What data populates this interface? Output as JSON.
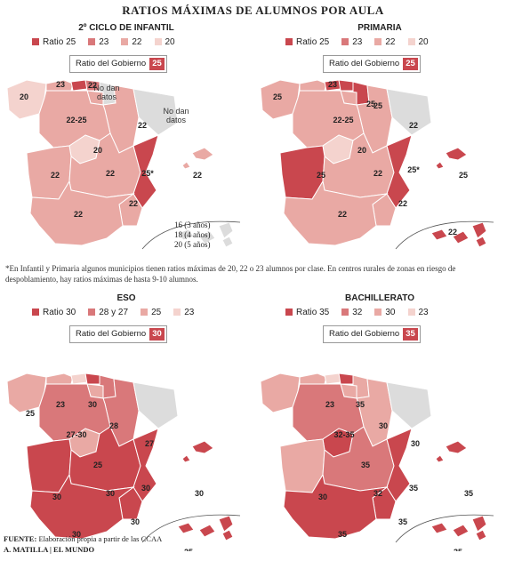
{
  "title": "RATIOS MÁXIMAS DE ALUMNOS POR AULA",
  "colors": {
    "c1": "#c9474e",
    "c2": "#d9787a",
    "c3": "#e9a9a4",
    "c4": "#f4d3ce",
    "none": "#dcdcdc"
  },
  "panels": [
    {
      "title": "2º CICLO DE INFANTIL",
      "legend": [
        "Ratio 25",
        "23",
        "22",
        "20"
      ],
      "gov_label": "Ratio del Gobierno",
      "gov_value": "25",
      "labels": {
        "galicia": "20",
        "cantabria": "23",
        "pvasco": "22",
        "nodan1": "No dan",
        "nodan1b": "datos",
        "nodan2": "No dan",
        "nodan2b": "datos",
        "cyl": "22-25",
        "madrid": "20",
        "aragon": "22",
        "extremadura": "22",
        "clm": "22",
        "valencia": "25*",
        "baleares": "22",
        "andalucia": "22",
        "murcia": "22"
      },
      "canarias": [
        "16 (3 años)",
        "18 (4 años)",
        "20 (5 años)"
      ]
    },
    {
      "title": "PRIMARIA",
      "legend": [
        "Ratio 25",
        "23",
        "22",
        "20"
      ],
      "gov_label": "Ratio del Gobierno",
      "gov_value": "25",
      "labels": {
        "galicia": "25",
        "cantabria": "23",
        "pvasco": "25",
        "cyl": "22-25",
        "madrid": "20",
        "aragon": "22",
        "extremadura": "25",
        "clm": "22",
        "valencia": "25*",
        "baleares": "25",
        "andalucia": "22",
        "murcia": "22",
        "canarias": "22",
        "navarra": "25"
      }
    },
    {
      "title": "ESO",
      "legend": [
        "Ratio 30",
        "28 y 27",
        "25",
        "23"
      ],
      "gov_label": "Ratio del Gobierno",
      "gov_value": "30",
      "labels": {
        "galicia": "25",
        "cantabria": "23",
        "pvasco": "30",
        "rioja": "28",
        "cyl": "27-30",
        "madrid": "25",
        "aragon": "27",
        "extremadura": "30",
        "clm": "30",
        "valencia": "30",
        "baleares": "30",
        "andalucia": "30",
        "murcia": "30",
        "canarias": "25"
      }
    },
    {
      "title": "BACHILLERATO",
      "legend": [
        "Ratio 35",
        "32",
        "30",
        "23"
      ],
      "gov_label": "Ratio del Gobierno",
      "gov_value": "35",
      "labels": {
        "cantabria": "23",
        "pvasco": "35",
        "navarra": "30",
        "cyl": "32-35",
        "madrid": "35",
        "aragon": "30",
        "extremadura": "30",
        "clm": "32",
        "valencia": "35",
        "baleares": "35",
        "andalucia": "35",
        "murcia": "35",
        "canarias": "35"
      }
    }
  ],
  "note": "*En Infantil y Primaria algunos municipios tienen ratios máximas de 20, 22 o 23 alumnos por clase. En centros rurales de zonas en riesgo de despoblamiento, hay ratios máximas de hasta 9-10 alumnos.",
  "footer": {
    "source_label": "FUENTE:",
    "source": "Elaboración propia a partir de las CCAA",
    "credit": "A. MATILLA | EL MUNDO"
  }
}
